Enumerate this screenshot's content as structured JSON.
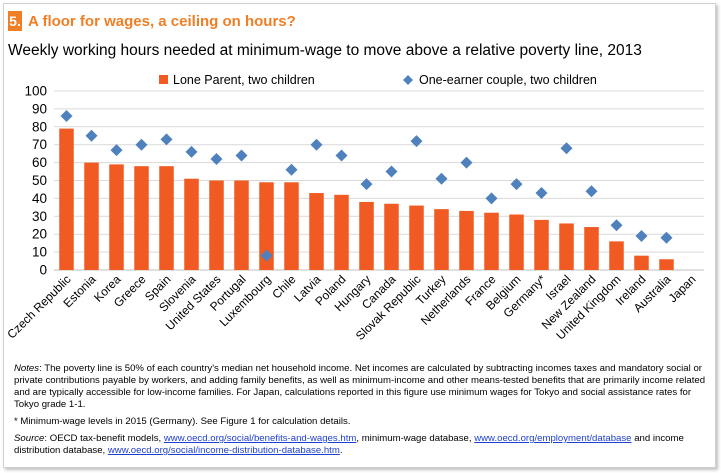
{
  "header": {
    "number": "5.",
    "title": "A floor for wages, a ceiling on hours?",
    "subtitle": "Weekly working hours needed at minimum-wage to move above a relative poverty line, 2013"
  },
  "colors": {
    "accent": "#F07E24",
    "bar": "#F15A22",
    "marker": "#4F81BD",
    "grid": "#D9D9D9"
  },
  "chart_data": {
    "type": "bar",
    "categories": [
      "Czech Republic",
      "Estonia",
      "Korea",
      "Greece",
      "Spain",
      "Slovenia",
      "United States",
      "Portugal",
      "Luxembourg",
      "Chile",
      "Latvia",
      "Poland",
      "Hungary",
      "Canada",
      "Slovak Republic",
      "Turkey",
      "Netherlands",
      "France",
      "Belgium",
      "Germany*",
      "Israel",
      "New Zealand",
      "United Kingdom",
      "Ireland",
      "Australia",
      "Japan"
    ],
    "series": [
      {
        "name": "Lone Parent, two children",
        "kind": "bar",
        "values": [
          79,
          60,
          59,
          58,
          58,
          51,
          50,
          50,
          49,
          49,
          43,
          42,
          38,
          37,
          36,
          34,
          33,
          32,
          31,
          28,
          26,
          24,
          16,
          8,
          6,
          0
        ]
      },
      {
        "name": "One-earner couple, two children",
        "kind": "marker",
        "values": [
          86,
          75,
          67,
          70,
          73,
          66,
          62,
          64,
          8,
          56,
          70,
          64,
          48,
          55,
          72,
          51,
          60,
          40,
          48,
          43,
          68,
          44,
          25,
          19,
          18,
          null
        ]
      }
    ],
    "yticks": [
      0,
      10,
      20,
      30,
      40,
      50,
      60,
      70,
      80,
      90,
      100
    ],
    "ylim": [
      0,
      100
    ],
    "legend": {
      "position": "top",
      "labels": [
        "Lone Parent, two children",
        "One-earner couple, two children"
      ]
    },
    "grid": true
  },
  "notes": {
    "notes_label": "Notes",
    "notes_text": ": The poverty line is 50% of each country's median net household income. Net incomes are calculated by subtracting incomes taxes and mandatory social or private contributions payable by workers, and adding family benefits, as well as minimum-income and other means-tested benefits that are primarily income related and are typically accessible for low-income families. For Japan, calculations reported in this figure use minimum wages for Tokyo and social assistance rates for Tokyo grade 1-1.",
    "footnote": "* Minimum-wage levels in 2015 (Germany). See Figure 1 for calculation details.",
    "source_label": "Source",
    "source_intro": ": OECD tax-benefit models, ",
    "link1": "www.oecd.org/social/benefits-and-wages.htm",
    "source_mid1": ", minimum-wage database, ",
    "link2": "www.oecd.org/employment/database",
    "source_mid2": " and income distribution database, ",
    "link3": "www.oecd.org/social/income-distribution-database.htm",
    "source_end": "."
  }
}
